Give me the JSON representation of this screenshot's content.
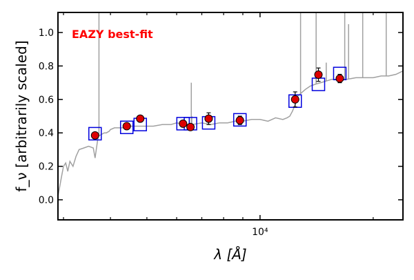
{
  "chart_data": {
    "type": "scatter",
    "annotation": "EAZY best-fit",
    "xlabel": "λ [Å]",
    "ylabel": "f_ν [arbitrarily scaled]",
    "xscale": "log",
    "xlim": [
      2900,
      24000
    ],
    "ylim": [
      -0.12,
      1.12
    ],
    "yticks": [
      0.0,
      0.2,
      0.4,
      0.6,
      0.8,
      1.0
    ],
    "ytick_labels": [
      "0.0",
      "0.2",
      "0.4",
      "0.6",
      "0.8",
      "1.0"
    ],
    "xtick_major": [
      10000
    ],
    "xtick_major_labels": [
      "10⁴"
    ],
    "xtick_minor": [
      3000,
      4000,
      5000,
      6000,
      7000,
      8000,
      9000,
      20000
    ],
    "grid": false,
    "colors": {
      "template": "#a0a0a0",
      "observed_fill": "#dd0000",
      "model_box": "#0000dd",
      "annotation": "#ff0000"
    },
    "series": [
      {
        "name": "observed",
        "marker": "circle",
        "x": [
          3640,
          4420,
          4800,
          6240,
          6530,
          7300,
          8840,
          12400,
          14300,
          16300
        ],
        "y": [
          0.385,
          0.44,
          0.485,
          0.455,
          0.435,
          0.485,
          0.475,
          0.6,
          0.748,
          0.725
        ],
        "yerr": [
          0.015,
          0.012,
          0.012,
          0.015,
          0.012,
          0.035,
          0.025,
          0.045,
          0.04,
          0.025
        ]
      },
      {
        "name": "model",
        "marker": "square",
        "x": [
          3640,
          4420,
          4800,
          6240,
          6530,
          7300,
          8840,
          12400,
          14300,
          16300
        ],
        "y": [
          0.395,
          0.433,
          0.45,
          0.455,
          0.455,
          0.46,
          0.478,
          0.59,
          0.69,
          0.755
        ]
      },
      {
        "name": "template",
        "x": [
          2900,
          2960,
          3000,
          3040,
          3080,
          3120,
          3180,
          3240,
          3300,
          3400,
          3500,
          3600,
          3640,
          3700,
          3720,
          3780,
          3850,
          3900,
          3970,
          4000,
          4100,
          4200,
          4300,
          4400,
          4600,
          4800,
          5000,
          5200,
          5500,
          5800,
          6000,
          6300,
          6600,
          7000,
          7400,
          7800,
          8200,
          8600,
          9000,
          9500,
          10000,
          10500,
          11000,
          11500,
          11800,
          12000,
          12200,
          12400,
          12600,
          12900,
          13200,
          13600,
          14000,
          14500,
          15000,
          15500,
          16000,
          17000,
          18000,
          19000,
          20000,
          21000,
          22000,
          23000,
          24000
        ],
        "y": [
          0.02,
          0.13,
          0.2,
          0.22,
          0.17,
          0.23,
          0.2,
          0.26,
          0.3,
          0.31,
          0.32,
          0.31,
          0.25,
          0.36,
          0.38,
          0.39,
          0.4,
          0.4,
          0.41,
          0.42,
          0.43,
          0.43,
          0.43,
          0.44,
          0.44,
          0.44,
          0.44,
          0.44,
          0.45,
          0.45,
          0.46,
          0.45,
          0.45,
          0.46,
          0.45,
          0.46,
          0.46,
          0.47,
          0.47,
          0.48,
          0.48,
          0.47,
          0.49,
          0.48,
          0.49,
          0.5,
          0.53,
          0.57,
          0.62,
          0.64,
          0.66,
          0.68,
          0.69,
          0.7,
          0.71,
          0.72,
          0.72,
          0.72,
          0.73,
          0.73,
          0.73,
          0.74,
          0.74,
          0.75,
          0.77
        ],
        "emission_lines": [
          {
            "x": 3728,
            "peak": 1.12
          },
          {
            "x": 6563,
            "peak": 0.7
          },
          {
            "x": 6583,
            "peak": 0.5
          },
          {
            "x": 12818,
            "peak": 1.12
          },
          {
            "x": 14100,
            "peak": 1.12
          },
          {
            "x": 15000,
            "peak": 0.82
          },
          {
            "x": 16800,
            "peak": 1.12
          },
          {
            "x": 17200,
            "peak": 1.05
          },
          {
            "x": 18756,
            "peak": 1.12
          },
          {
            "x": 21660,
            "peak": 1.12
          }
        ]
      }
    ]
  }
}
